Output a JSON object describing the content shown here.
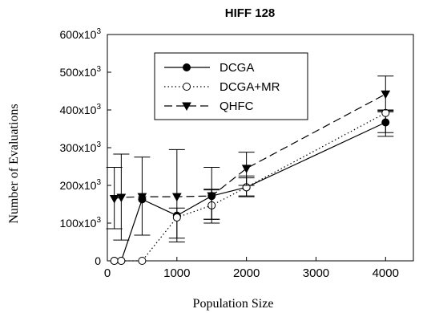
{
  "chart_data": {
    "type": "line",
    "title": "HIFF 128",
    "xlabel": "Population Size",
    "ylabel": "Number of Evaluations",
    "xlim": [
      0,
      4400
    ],
    "ylim": [
      0,
      600000
    ],
    "xticks": [
      0,
      1000,
      2000,
      3000,
      4000
    ],
    "xtick_labels": [
      "0",
      "1000",
      "2000",
      "3000",
      "4000"
    ],
    "yticks": [
      0,
      100000,
      200000,
      300000,
      400000,
      500000,
      600000
    ],
    "ytick_labels": [
      "0",
      "100x10",
      "200x10",
      "300x10",
      "400x10",
      "500x10",
      "600x10"
    ],
    "ytick_exponents": [
      "",
      "3",
      "3",
      "3",
      "3",
      "3",
      "3"
    ],
    "grid": false,
    "legend_position": "top-left",
    "series": [
      {
        "name": "DCGA",
        "line_style": "solid",
        "marker": "filled-circle",
        "x": [
          100,
          200,
          500,
          1000,
          1500,
          2000,
          4000
        ],
        "y": [
          0,
          0,
          163000,
          120000,
          172000,
          195000,
          367000
        ],
        "err_low": [
          0,
          0,
          68000,
          50000,
          100000,
          170000,
          330000
        ],
        "err_high": [
          0,
          0,
          275000,
          295000,
          248000,
          225000,
          395000
        ]
      },
      {
        "name": "DCGA+MR",
        "line_style": "dotted",
        "marker": "open-circle",
        "x": [
          100,
          200,
          500,
          1000,
          1500,
          2000,
          4000
        ],
        "y": [
          0,
          0,
          0,
          115000,
          147000,
          195000,
          392000
        ],
        "err_low": [
          0,
          0,
          0,
          60000,
          110000,
          172000,
          340000
        ],
        "err_high": [
          0,
          0,
          0,
          140000,
          188000,
          220000,
          398000
        ]
      },
      {
        "name": "QHFC",
        "line_style": "dashed",
        "marker": "filled-triangle-down",
        "x": [
          100,
          200,
          500,
          1000,
          1500,
          2000,
          4000
        ],
        "y": [
          165000,
          168000,
          170000,
          170000,
          172000,
          245000,
          442000
        ],
        "err_low": [
          85000,
          55000,
          0,
          0,
          110000,
          200000,
          400000
        ],
        "err_high": [
          248000,
          283000,
          0,
          0,
          190000,
          288000,
          490000
        ]
      }
    ]
  }
}
